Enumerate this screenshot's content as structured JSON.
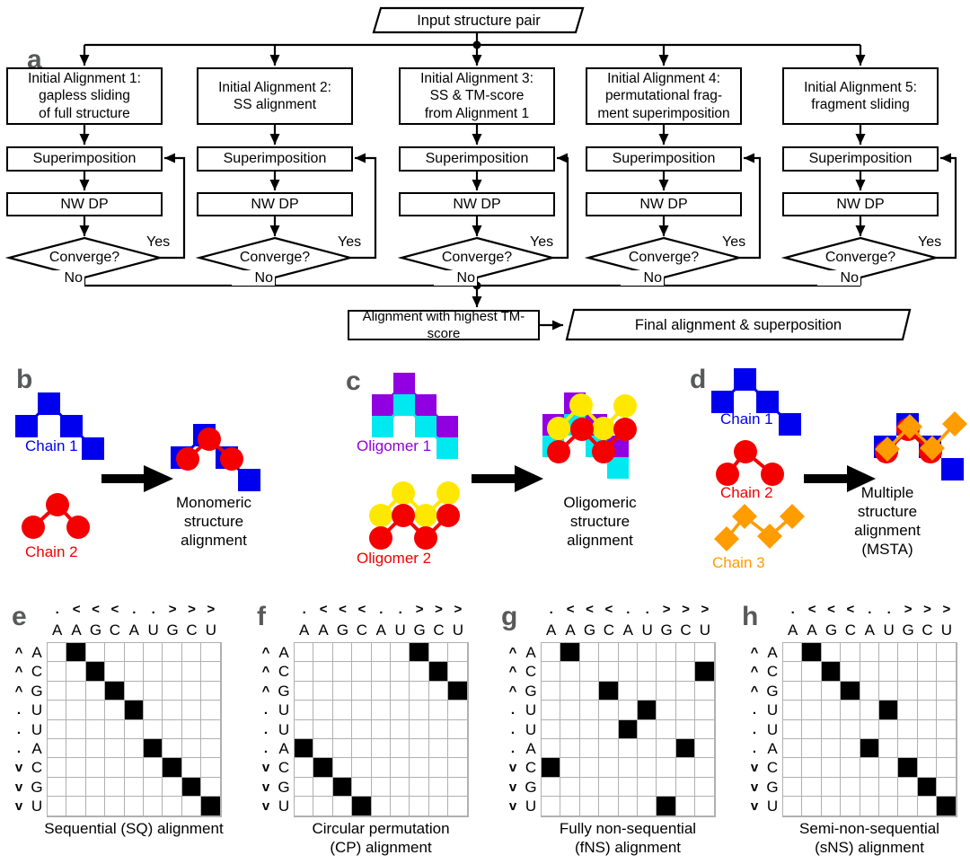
{
  "figure": {
    "colors": {
      "black": "#000000",
      "panel_letter_gray": "#58595b",
      "blue": "#0000ee",
      "red": "#f40000",
      "purple": "#9000e0",
      "cyan": "#00e8f0",
      "yellow": "#ffe800",
      "orange": "#ff9c00",
      "grid_line_gray": "#b0b0b0"
    }
  },
  "flowchart": {
    "letter": "a",
    "input_label": "Input structure pair",
    "branches": [
      {
        "title": "Initial Alignment 1:\ngapless sliding\nof full structure"
      },
      {
        "title": "Initial Alignment 2:\nSS alignment"
      },
      {
        "title": "Initial Alignment 3:\nSS & TM-score\nfrom Alignment 1"
      },
      {
        "title": "Initial Alignment 4:\npermutational frag-\nment superimposition"
      },
      {
        "title": "Initial Alignment 5:\nfragment sliding"
      }
    ],
    "superimposition_label": "Superimposition",
    "nwdp_label": "NW DP",
    "converge_label": "Converge?",
    "yes_label": "Yes",
    "no_label": "No",
    "highest_label": "Alignment with highest TM-score",
    "final_label": "Final alignment & superposition"
  },
  "panel_b": {
    "letter": "b",
    "chain1_label": "Chain 1",
    "chain2_label": "Chain 2",
    "caption": "Monomeric\nstructure\nalignment"
  },
  "panel_c": {
    "letter": "c",
    "oligomer1_label": "Oligomer 1",
    "oligomer2_label": "Oligomer 2",
    "caption": "Oligomeric\nstructure\nalignment"
  },
  "panel_d": {
    "letter": "d",
    "chain1_label": "Chain 1",
    "chain2_label": "Chain 2",
    "chain3_label": "Chain 3",
    "caption": "Multiple\nstructure\nalignment\n(MSTA)"
  },
  "matrix": {
    "col_markers": [
      ".",
      "<",
      "<",
      "<",
      ".",
      ".",
      ">",
      ">",
      ">"
    ],
    "col_letters": [
      "A",
      "A",
      "G",
      "C",
      "A",
      "U",
      "G",
      "C",
      "U"
    ],
    "row_markers": [
      "^",
      "^",
      "^",
      ".",
      ".",
      ".",
      "v",
      "v",
      "v"
    ],
    "row_letters": [
      "A",
      "C",
      "G",
      "U",
      "U",
      "A",
      "C",
      "G",
      "U"
    ],
    "panels": [
      {
        "letter": "e",
        "caption_lines": [
          "Sequential (SQ) alignment"
        ],
        "filled": [
          [
            0,
            1
          ],
          [
            1,
            2
          ],
          [
            2,
            3
          ],
          [
            3,
            4
          ],
          [
            5,
            5
          ],
          [
            6,
            6
          ],
          [
            7,
            7
          ],
          [
            8,
            8
          ]
        ]
      },
      {
        "letter": "f",
        "caption_lines": [
          "Circular permutation",
          "(CP) alignment"
        ],
        "filled": [
          [
            0,
            6
          ],
          [
            1,
            7
          ],
          [
            2,
            8
          ],
          [
            5,
            0
          ],
          [
            6,
            1
          ],
          [
            7,
            2
          ],
          [
            8,
            3
          ]
        ]
      },
      {
        "letter": "g",
        "caption_lines": [
          "Fully non-sequential",
          "(fNS) alignment"
        ],
        "filled": [
          [
            0,
            1
          ],
          [
            1,
            8
          ],
          [
            2,
            3
          ],
          [
            3,
            5
          ],
          [
            4,
            4
          ],
          [
            5,
            7
          ],
          [
            6,
            0
          ],
          [
            8,
            6
          ]
        ]
      },
      {
        "letter": "h",
        "caption_lines": [
          "Semi-non-sequential",
          "(sNS) alignment"
        ],
        "filled": [
          [
            0,
            1
          ],
          [
            1,
            2
          ],
          [
            2,
            3
          ],
          [
            3,
            5
          ],
          [
            5,
            4
          ],
          [
            6,
            6
          ],
          [
            7,
            7
          ],
          [
            8,
            8
          ]
        ]
      }
    ]
  }
}
